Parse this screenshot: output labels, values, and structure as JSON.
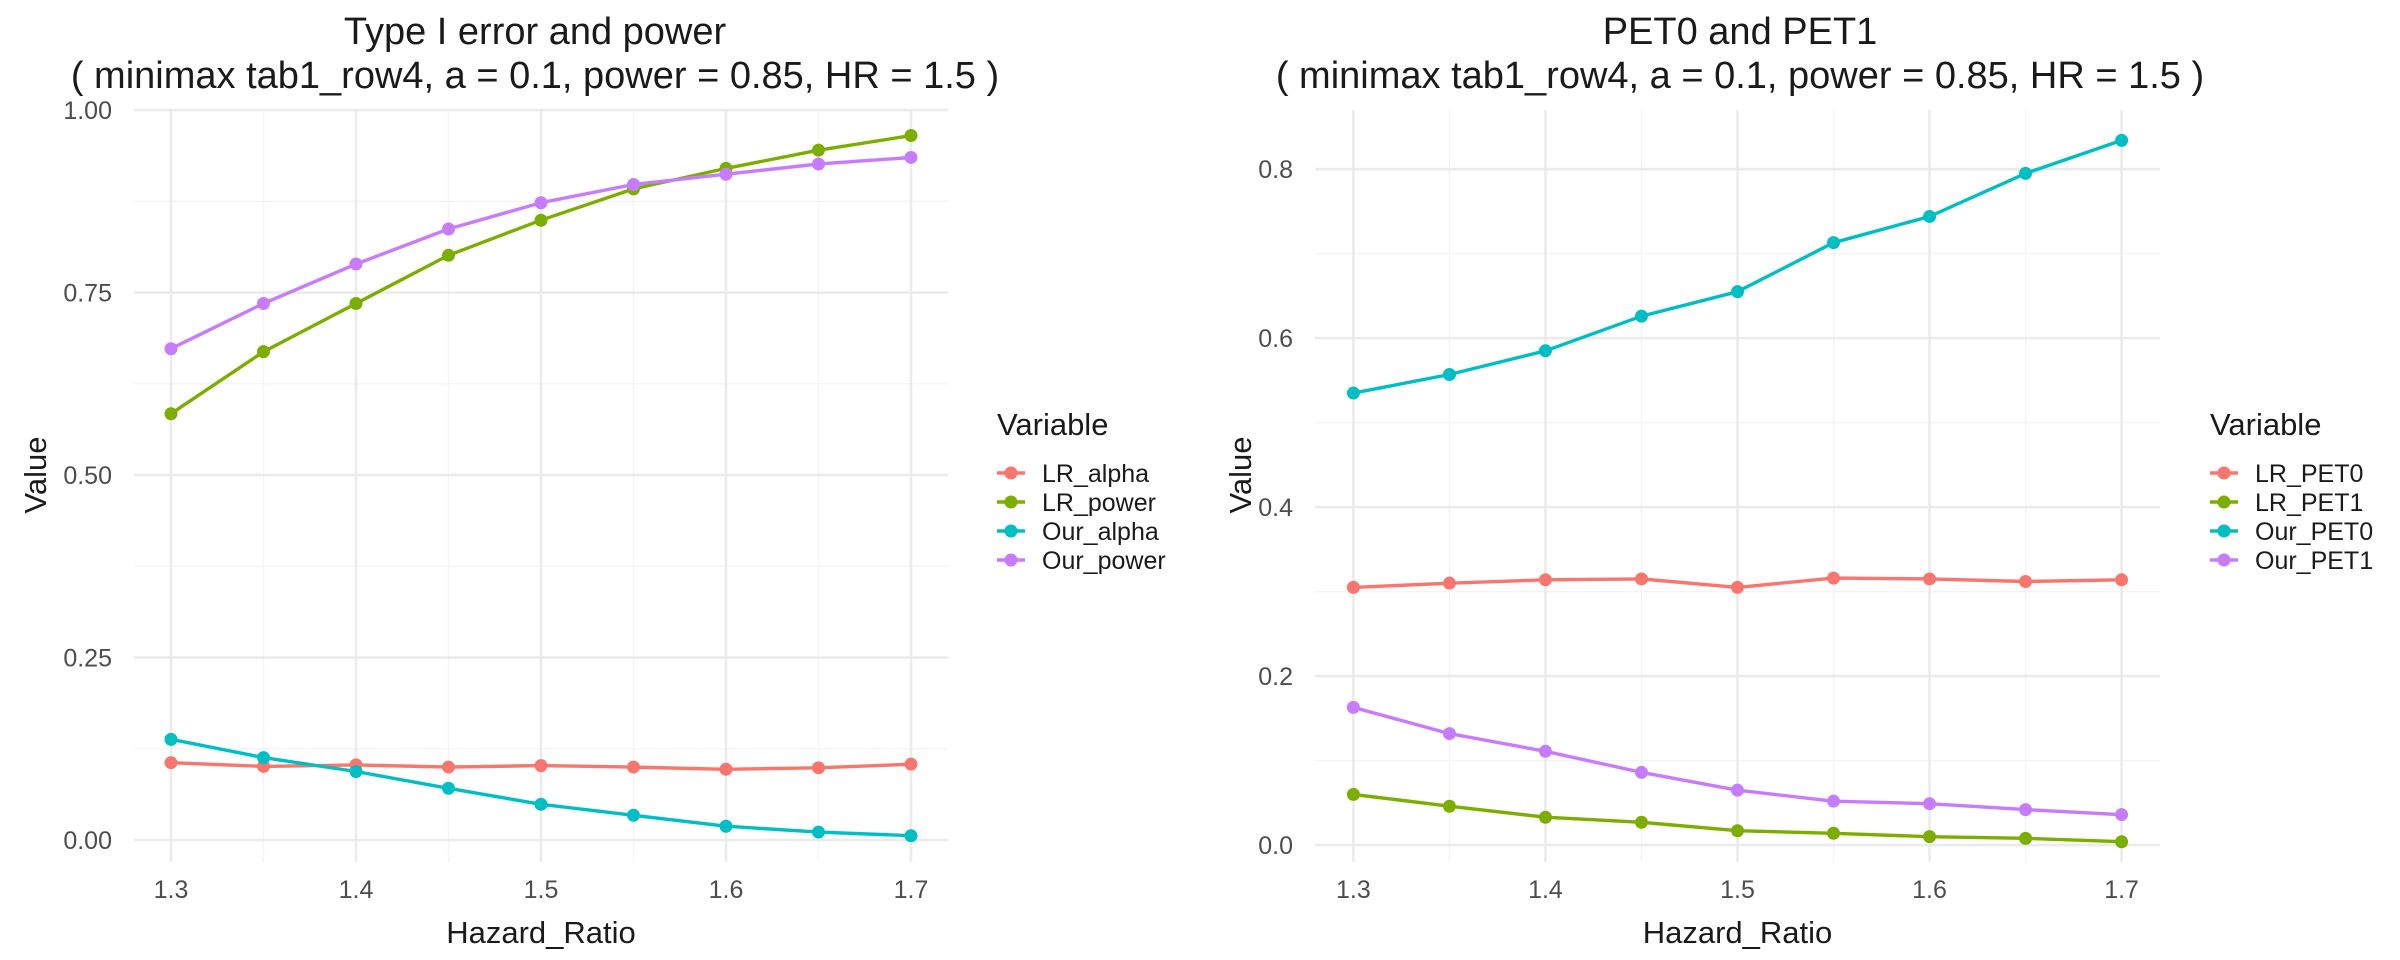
{
  "chart_data": [
    {
      "type": "line",
      "title": "Type I error and power",
      "subtitle": "( minimax tab1_row4, a = 0.1, power = 0.85, HR = 1.5 )",
      "xlabel": "Hazard_Ratio",
      "ylabel": "Value",
      "xlim": [
        1.28,
        1.72
      ],
      "ylim": [
        -0.03,
        1.0
      ],
      "x_ticks": [
        1.3,
        1.4,
        1.5,
        1.6,
        1.7
      ],
      "x_tick_labels": [
        "1.3",
        "1.4",
        "1.5",
        "1.6",
        "1.7"
      ],
      "y_ticks": [
        0,
        0.25,
        0.5,
        0.75,
        1.0
      ],
      "y_tick_labels": [
        "0.00",
        "0.25",
        "0.50",
        "0.75",
        "1.00"
      ],
      "grid": true,
      "legend": {
        "title": "Variable",
        "position": "right"
      },
      "x": [
        1.3,
        1.35,
        1.4,
        1.45,
        1.5,
        1.55,
        1.6,
        1.65,
        1.7
      ],
      "series": [
        {
          "name": "LR_alpha",
          "color": "#F8766D",
          "values": [
            0.106,
            0.101,
            0.103,
            0.1,
            0.102,
            0.1,
            0.097,
            0.099,
            0.104
          ]
        },
        {
          "name": "LR_power",
          "color": "#7CAE00",
          "values": [
            0.584,
            0.669,
            0.735,
            0.801,
            0.849,
            0.892,
            0.92,
            0.945,
            0.965
          ]
        },
        {
          "name": "Our_alpha",
          "color": "#00BFC4",
          "values": [
            0.138,
            0.113,
            0.094,
            0.071,
            0.049,
            0.034,
            0.019,
            0.011,
            0.006
          ]
        },
        {
          "name": "Our_power",
          "color": "#C77CFF",
          "values": [
            0.673,
            0.735,
            0.789,
            0.837,
            0.873,
            0.898,
            0.912,
            0.926,
            0.935
          ]
        }
      ]
    },
    {
      "type": "line",
      "title": "PET0 and PET1",
      "subtitle": "( minimax tab1_row4, a = 0.1, power = 0.85, HR = 1.5 )",
      "xlabel": "Hazard_Ratio",
      "ylabel": "Value",
      "xlim": [
        1.28,
        1.72
      ],
      "ylim": [
        -0.02,
        0.87
      ],
      "x_ticks": [
        1.3,
        1.4,
        1.5,
        1.6,
        1.7
      ],
      "x_tick_labels": [
        "1.3",
        "1.4",
        "1.5",
        "1.6",
        "1.7"
      ],
      "y_ticks": [
        0,
        0.2,
        0.4,
        0.6,
        0.8
      ],
      "y_tick_labels": [
        "0.0",
        "0.2",
        "0.4",
        "0.6",
        "0.8"
      ],
      "grid": true,
      "legend": {
        "title": "Variable",
        "position": "right"
      },
      "x": [
        1.3,
        1.35,
        1.4,
        1.45,
        1.5,
        1.55,
        1.6,
        1.65,
        1.7
      ],
      "series": [
        {
          "name": "LR_PET0",
          "color": "#F8766D",
          "values": [
            0.305,
            0.31,
            0.314,
            0.315,
            0.305,
            0.316,
            0.315,
            0.312,
            0.314
          ]
        },
        {
          "name": "LR_PET1",
          "color": "#7CAE00",
          "values": [
            0.06,
            0.046,
            0.033,
            0.027,
            0.017,
            0.014,
            0.01,
            0.008,
            0.004
          ]
        },
        {
          "name": "Our_PET0",
          "color": "#00BFC4",
          "values": [
            0.535,
            0.557,
            0.585,
            0.626,
            0.655,
            0.713,
            0.744,
            0.795,
            0.834
          ]
        },
        {
          "name": "Our_PET1",
          "color": "#C77CFF",
          "values": [
            0.163,
            0.132,
            0.111,
            0.086,
            0.065,
            0.052,
            0.049,
            0.042,
            0.036
          ]
        }
      ]
    }
  ]
}
